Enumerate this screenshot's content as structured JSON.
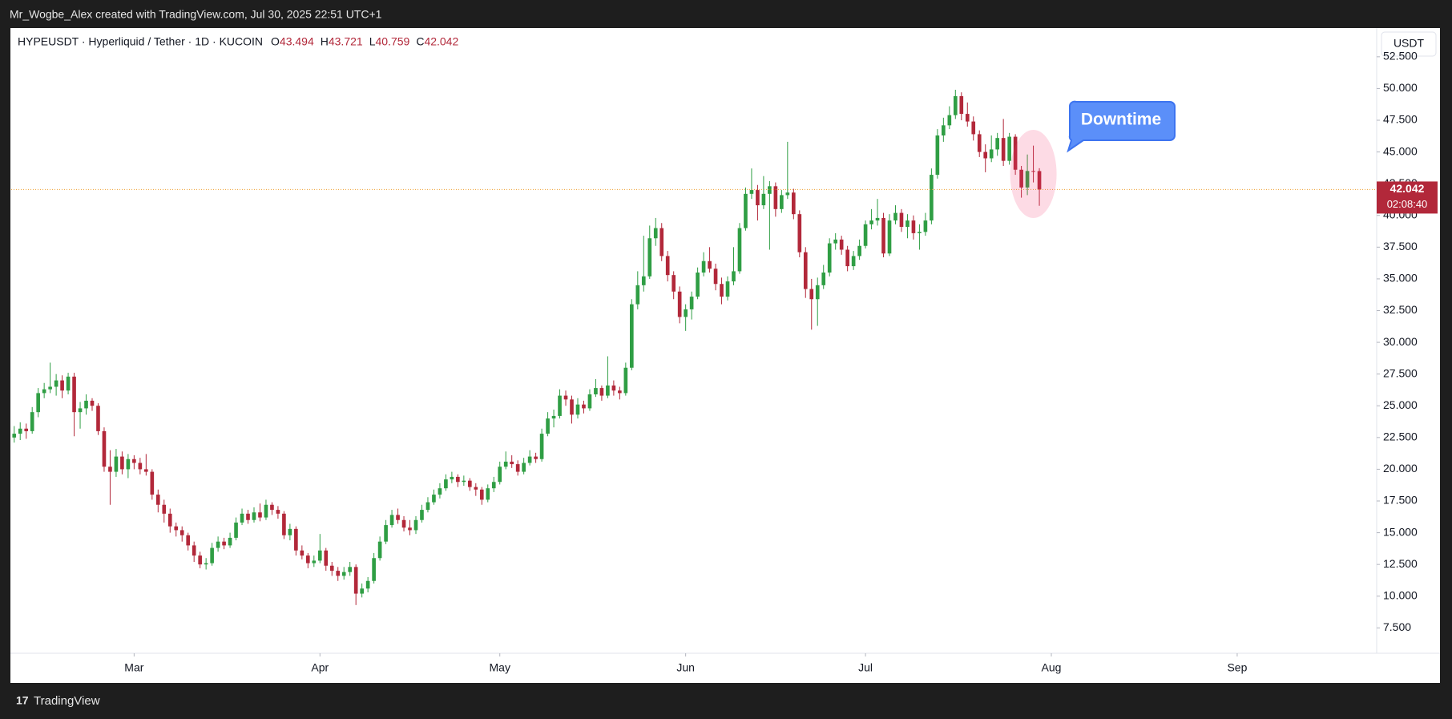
{
  "header": {
    "credit": "Mr_Wogbe_Alex created with TradingView.com, Jul 30, 2025 22:51 UTC+1"
  },
  "footer": {
    "brand": "TradingView"
  },
  "chart_data": {
    "type": "candlestick",
    "symbol": "HYPEUSDT · Hyperliquid / Tether · 1D · KUCOIN",
    "ohlc_labels": [
      "O",
      "H",
      "L",
      "C"
    ],
    "currency": "USDT",
    "countdown": "02:08:40",
    "annotation": "Downtime",
    "up_color": "#2f9e44",
    "down_color": "#b2283a",
    "xticks": [
      {
        "value": 20,
        "label": "Mar"
      },
      {
        "value": 51,
        "label": "Apr"
      },
      {
        "value": 81,
        "label": "May"
      },
      {
        "value": 112,
        "label": "Jun"
      },
      {
        "value": 142,
        "label": "Jul"
      },
      {
        "value": 173,
        "label": "Aug"
      },
      {
        "value": 204,
        "label": "Sep"
      }
    ],
    "xlim": [
      -0.5,
      227
    ],
    "ylim": [
      5.5,
      54.7
    ],
    "yticks": [
      {
        "value": 7.5,
        "label": "7.500"
      },
      {
        "value": 10,
        "label": "10.000"
      },
      {
        "value": 12.5,
        "label": "12.500"
      },
      {
        "value": 15,
        "label": "15.000"
      },
      {
        "value": 17.5,
        "label": "17.500"
      },
      {
        "value": 20,
        "label": "20.000"
      },
      {
        "value": 22.5,
        "label": "22.500"
      },
      {
        "value": 25,
        "label": "25.000"
      },
      {
        "value": 27.5,
        "label": "27.500"
      },
      {
        "value": 30,
        "label": "30.000"
      },
      {
        "value": 32.5,
        "label": "32.500"
      },
      {
        "value": 35,
        "label": "35.000"
      },
      {
        "value": 37.5,
        "label": "37.500"
      },
      {
        "value": 40,
        "label": "40.000"
      },
      {
        "value": 42.5,
        "label": "42.500"
      },
      {
        "value": 45,
        "label": "45.000"
      },
      {
        "value": 47.5,
        "label": "47.500"
      },
      {
        "value": 50,
        "label": "50.000"
      },
      {
        "value": 52.5,
        "label": "52.500"
      }
    ],
    "candles": [
      [
        22.5,
        23.4,
        22.1,
        22.8
      ],
      [
        22.8,
        23.7,
        22.3,
        23.2
      ],
      [
        23.2,
        23.6,
        22.4,
        23
      ],
      [
        23,
        24.9,
        22.8,
        24.5
      ],
      [
        24.5,
        26.4,
        24.1,
        26
      ],
      [
        26,
        26.8,
        25.6,
        26.3
      ],
      [
        26.3,
        28.4,
        26,
        26.5
      ],
      [
        26.5,
        27.5,
        25.8,
        27
      ],
      [
        27,
        27.4,
        25.6,
        26.2
      ],
      [
        26.2,
        27.6,
        25.9,
        27.3
      ],
      [
        27.3,
        27.6,
        22.6,
        24.5
      ],
      [
        24.5,
        25.3,
        23.2,
        24.8
      ],
      [
        24.8,
        25.9,
        24.3,
        25.4
      ],
      [
        25.4,
        25.6,
        24.6,
        25
      ],
      [
        25,
        25.2,
        22.7,
        23
      ],
      [
        23,
        23.3,
        19.8,
        20.2
      ],
      [
        20.2,
        21.5,
        17.2,
        19.8
      ],
      [
        19.8,
        21.6,
        19.4,
        21
      ],
      [
        21,
        21.4,
        19.6,
        20
      ],
      [
        20,
        21.2,
        19.3,
        20.8
      ],
      [
        20.8,
        21.1,
        20,
        20.5
      ],
      [
        20.5,
        20.9,
        19.6,
        20
      ],
      [
        20,
        21.2,
        19.5,
        19.8
      ],
      [
        19.8,
        20,
        17.6,
        18
      ],
      [
        18,
        18.4,
        16.6,
        17.2
      ],
      [
        17.2,
        17.6,
        15.8,
        16.5
      ],
      [
        16.5,
        16.9,
        15,
        15.5
      ],
      [
        15.5,
        15.8,
        14.7,
        15.2
      ],
      [
        15.2,
        15.5,
        14.3,
        14.8
      ],
      [
        14.8,
        15,
        13.6,
        14
      ],
      [
        14,
        14.3,
        12.7,
        13.2
      ],
      [
        13.2,
        13.5,
        12.2,
        12.5
      ],
      [
        12.5,
        13,
        12.1,
        12.6
      ],
      [
        12.6,
        14.2,
        12.4,
        13.8
      ],
      [
        13.8,
        14.7,
        13.5,
        14.3
      ],
      [
        14.3,
        14.6,
        13.7,
        14
      ],
      [
        14,
        15,
        13.8,
        14.6
      ],
      [
        14.6,
        16.2,
        14.4,
        15.8
      ],
      [
        15.8,
        16.9,
        15.6,
        16.5
      ],
      [
        16.5,
        16.8,
        15.7,
        16
      ],
      [
        16,
        17,
        15.8,
        16.6
      ],
      [
        16.6,
        17.3,
        15.9,
        16.2
      ],
      [
        16.2,
        17.6,
        16,
        17.2
      ],
      [
        17.2,
        17.4,
        16.4,
        16.8
      ],
      [
        16.8,
        17.1,
        16.1,
        16.5
      ],
      [
        16.5,
        16.7,
        14.5,
        14.8
      ],
      [
        14.8,
        15.7,
        14.4,
        15.3
      ],
      [
        15.3,
        15.5,
        13.2,
        13.6
      ],
      [
        13.6,
        14,
        12.9,
        13.2
      ],
      [
        13.2,
        13.4,
        12.2,
        12.6
      ],
      [
        12.6,
        13.2,
        12.3,
        12.8
      ],
      [
        12.8,
        14.9,
        12.6,
        13.6
      ],
      [
        13.6,
        13.8,
        12,
        12.4
      ],
      [
        12.4,
        12.7,
        11.6,
        12
      ],
      [
        12,
        12.3,
        11.2,
        11.6
      ],
      [
        11.6,
        12.3,
        11.3,
        11.9
      ],
      [
        11.9,
        12.7,
        11.6,
        12.3
      ],
      [
        12.3,
        12.5,
        9.3,
        10.2
      ],
      [
        10.2,
        11,
        9.9,
        10.6
      ],
      [
        10.6,
        11.5,
        10.3,
        11.2
      ],
      [
        11.2,
        13.4,
        11,
        13
      ],
      [
        13,
        14.7,
        12.8,
        14.3
      ],
      [
        14.3,
        16,
        14.1,
        15.6
      ],
      [
        15.6,
        16.8,
        15.4,
        16.4
      ],
      [
        16.4,
        16.9,
        15.7,
        16
      ],
      [
        16,
        16.3,
        15.1,
        15.4
      ],
      [
        15.4,
        16,
        14.8,
        15.2
      ],
      [
        15.2,
        16.3,
        14.9,
        16
      ],
      [
        16,
        17.2,
        15.8,
        16.8
      ],
      [
        16.8,
        17.8,
        16.6,
        17.4
      ],
      [
        17.4,
        18.4,
        17.2,
        18
      ],
      [
        18,
        18.9,
        17.7,
        18.5
      ],
      [
        18.5,
        19.6,
        18.3,
        19.2
      ],
      [
        19.2,
        19.8,
        18.9,
        19.4
      ],
      [
        19.4,
        19.6,
        18.6,
        19
      ],
      [
        19,
        19.5,
        18.7,
        19.1
      ],
      [
        19.1,
        19.3,
        18.3,
        18.6
      ],
      [
        18.6,
        18.9,
        17.9,
        18.4
      ],
      [
        18.4,
        18.6,
        17.2,
        17.6
      ],
      [
        17.6,
        18.8,
        17.4,
        18.5
      ],
      [
        18.5,
        19.4,
        18.2,
        19
      ],
      [
        19,
        20.6,
        18.8,
        20.2
      ],
      [
        20.2,
        21.4,
        20,
        20.6
      ],
      [
        20.6,
        21.1,
        20.1,
        20.4
      ],
      [
        20.4,
        20.7,
        19.5,
        19.8
      ],
      [
        19.8,
        20.9,
        19.6,
        20.5
      ],
      [
        20.5,
        21.5,
        20.3,
        21
      ],
      [
        21,
        21.3,
        20.5,
        20.8
      ],
      [
        20.8,
        23.2,
        20.6,
        22.8
      ],
      [
        22.8,
        24.5,
        22.6,
        24
      ],
      [
        24,
        24.7,
        23.3,
        24.2
      ],
      [
        24.2,
        26.3,
        24,
        25.8
      ],
      [
        25.8,
        26.2,
        25,
        25.5
      ],
      [
        25.5,
        25.8,
        23.6,
        24.3
      ],
      [
        24.3,
        25.6,
        24,
        25.1
      ],
      [
        25.1,
        25.4,
        24.4,
        24.8
      ],
      [
        24.8,
        26.3,
        24.6,
        25.9
      ],
      [
        25.9,
        27.1,
        25.7,
        26.4
      ],
      [
        26.4,
        26.6,
        25.4,
        25.8
      ],
      [
        25.8,
        28.9,
        25.6,
        26.6
      ],
      [
        26.6,
        27,
        25.8,
        26.2
      ],
      [
        26.2,
        26.5,
        25.5,
        26
      ],
      [
        26,
        28.4,
        25.8,
        28
      ],
      [
        28,
        33.4,
        27.8,
        33
      ],
      [
        33,
        35.6,
        32.6,
        34.5
      ],
      [
        34.5,
        38.4,
        34,
        35.2
      ],
      [
        35.2,
        39.2,
        35,
        38.2
      ],
      [
        38.2,
        39.8,
        37.6,
        39
      ],
      [
        39,
        39.4,
        36.4,
        36.8
      ],
      [
        36.8,
        37.2,
        34.8,
        35.3
      ],
      [
        35.3,
        35.6,
        33.4,
        34
      ],
      [
        34,
        34.4,
        31.5,
        32
      ],
      [
        32,
        33,
        30.9,
        32.6
      ],
      [
        32.6,
        34,
        31.8,
        33.6
      ],
      [
        33.6,
        35.9,
        33.4,
        35.5
      ],
      [
        35.5,
        37.1,
        35.2,
        36.4
      ],
      [
        36.4,
        37.5,
        35.5,
        35.8
      ],
      [
        35.8,
        36.2,
        34.1,
        34.6
      ],
      [
        34.6,
        35.1,
        33,
        33.6
      ],
      [
        33.6,
        35.2,
        33.3,
        34.8
      ],
      [
        34.8,
        37.5,
        34.5,
        35.6
      ],
      [
        35.6,
        39.4,
        35.4,
        39
      ],
      [
        39,
        42.2,
        38.8,
        41.7
      ],
      [
        41.7,
        43.7,
        41.3,
        42
      ],
      [
        42,
        42.4,
        39.6,
        40.8
      ],
      [
        40.8,
        43.1,
        40.5,
        41.7
      ],
      [
        41.7,
        42.7,
        37.3,
        42.3
      ],
      [
        42.3,
        42.6,
        39.9,
        40.5
      ],
      [
        40.5,
        42,
        40.2,
        41.6
      ],
      [
        41.6,
        45.8,
        41.3,
        41.8
      ],
      [
        41.8,
        42.1,
        39.7,
        40.1
      ],
      [
        40.1,
        40.4,
        36.7,
        37.1
      ],
      [
        37.1,
        37.5,
        33.5,
        34.2
      ],
      [
        34.2,
        35,
        31,
        33.4
      ],
      [
        33.4,
        35.1,
        31.3,
        34.5
      ],
      [
        34.5,
        36.1,
        34.2,
        35.5
      ],
      [
        35.5,
        38.2,
        35.2,
        37.8
      ],
      [
        37.8,
        38.6,
        37.3,
        38.1
      ],
      [
        38.1,
        38.4,
        36.9,
        37.3
      ],
      [
        37.3,
        37.6,
        35.6,
        36
      ],
      [
        36,
        37.2,
        35.7,
        36.8
      ],
      [
        36.8,
        38.1,
        36.5,
        37.6
      ],
      [
        37.6,
        39.6,
        37.4,
        39.3
      ],
      [
        39.3,
        40.5,
        38.9,
        39.6
      ],
      [
        39.6,
        41.3,
        39.2,
        39.8
      ],
      [
        39.8,
        40.2,
        36.7,
        37
      ],
      [
        37,
        40.1,
        36.8,
        39.6
      ],
      [
        39.6,
        40.8,
        39.3,
        40.2
      ],
      [
        40.2,
        40.5,
        38.7,
        39.1
      ],
      [
        39.1,
        40.1,
        38.2,
        39.6
      ],
      [
        39.6,
        40,
        38.1,
        38.6
      ],
      [
        38.6,
        39.3,
        37.3,
        38.7
      ],
      [
        38.7,
        40.2,
        38.4,
        39.6
      ],
      [
        39.6,
        43.7,
        39.3,
        43.2
      ],
      [
        43.2,
        46.8,
        42.9,
        46.3
      ],
      [
        46.3,
        47.7,
        45.8,
        47.1
      ],
      [
        47.1,
        48.6,
        46.8,
        47.9
      ],
      [
        47.9,
        49.9,
        47.6,
        49.4
      ],
      [
        49.4,
        49.7,
        47.5,
        48
      ],
      [
        48,
        48.9,
        47,
        47.4
      ],
      [
        47.4,
        47.8,
        45.9,
        46.4
      ],
      [
        46.4,
        46.7,
        44.6,
        45
      ],
      [
        45,
        45.6,
        43.4,
        44.5
      ],
      [
        44.5,
        46.3,
        44.2,
        45.2
      ],
      [
        45.2,
        46.5,
        44.7,
        46.1
      ],
      [
        46.1,
        47.6,
        43.9,
        44.3
      ],
      [
        44.3,
        46.5,
        44,
        46.2
      ],
      [
        46.2,
        46.4,
        43.2,
        43.6
      ],
      [
        43.6,
        43.9,
        41.4,
        42.2
      ],
      [
        42.2,
        44.8,
        41.6,
        43.5
      ],
      [
        43.5,
        45.5,
        42.6,
        43.494
      ],
      [
        43.494,
        43.721,
        40.759,
        42.042
      ]
    ]
  }
}
